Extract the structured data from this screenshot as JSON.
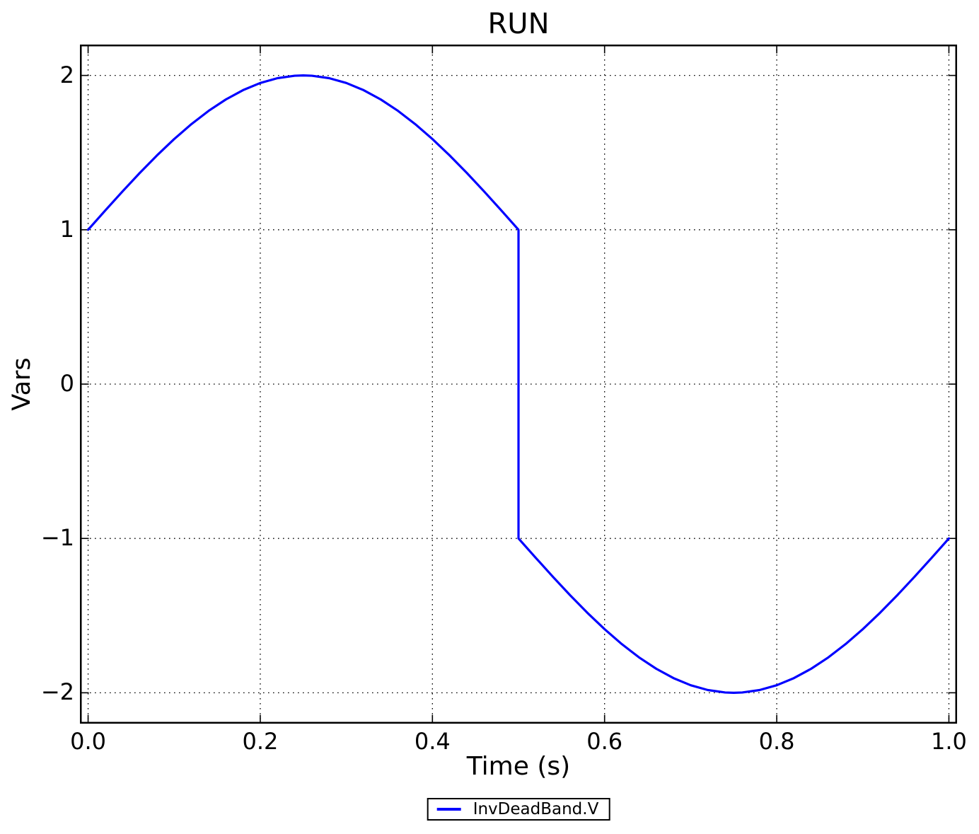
{
  "chart_data": {
    "type": "line",
    "title": "RUN",
    "xlabel": "Time (s)",
    "ylabel": "Vars",
    "xlim": [
      -0.0095,
      1.0095
    ],
    "ylim": [
      -2.2,
      2.2
    ],
    "x_ticks": [
      0.0,
      0.2,
      0.4,
      0.6,
      0.8,
      1.0
    ],
    "x_tick_labels": [
      "0.0",
      "0.2",
      "0.4",
      "0.6",
      "0.8",
      "1.0"
    ],
    "y_ticks": [
      -2,
      -1,
      0,
      1,
      2
    ],
    "y_tick_labels": [
      "−2",
      "−1",
      "0",
      "1",
      "2"
    ],
    "grid": true,
    "grid_style": "dotted",
    "axis_color": "#000000",
    "background_color": "#ffffff",
    "legend": {
      "position": "below-axes-center",
      "entries": [
        {
          "label": "InvDeadBand.V",
          "color": "#0000ff"
        }
      ]
    },
    "series": [
      {
        "name": "InvDeadBand.V",
        "color": "#0000ff",
        "line_width": 3.2,
        "description": "y = sin(2*pi*t) + 1 for t in [0,0.5]; y = sin(2*pi*t) - 1 for t in (0.5,1]; vertical jump from 1 to -1 at t = 0.5",
        "points": [
          [
            0.0,
            1.0
          ],
          [
            0.02,
            1.1253
          ],
          [
            0.04,
            1.2487
          ],
          [
            0.06,
            1.3681
          ],
          [
            0.08,
            1.4818
          ],
          [
            0.1,
            1.5878
          ],
          [
            0.12,
            1.6845
          ],
          [
            0.14,
            1.7705
          ],
          [
            0.16,
            1.8443
          ],
          [
            0.18,
            1.9048
          ],
          [
            0.2,
            1.9511
          ],
          [
            0.22,
            1.9823
          ],
          [
            0.24,
            1.998
          ],
          [
            0.25,
            2.0
          ],
          [
            0.26,
            1.998
          ],
          [
            0.28,
            1.9823
          ],
          [
            0.3,
            1.9511
          ],
          [
            0.32,
            1.9048
          ],
          [
            0.34,
            1.8443
          ],
          [
            0.36,
            1.7705
          ],
          [
            0.38,
            1.6845
          ],
          [
            0.4,
            1.5878
          ],
          [
            0.42,
            1.4818
          ],
          [
            0.44,
            1.3681
          ],
          [
            0.46,
            1.2487
          ],
          [
            0.48,
            1.1253
          ],
          [
            0.5,
            1.0
          ],
          [
            0.5,
            -1.0
          ],
          [
            0.52,
            -1.1253
          ],
          [
            0.54,
            -1.2487
          ],
          [
            0.56,
            -1.3681
          ],
          [
            0.58,
            -1.4818
          ],
          [
            0.6,
            -1.5878
          ],
          [
            0.62,
            -1.6845
          ],
          [
            0.64,
            -1.7705
          ],
          [
            0.66,
            -1.8443
          ],
          [
            0.68,
            -1.9048
          ],
          [
            0.7,
            -1.9511
          ],
          [
            0.72,
            -1.9823
          ],
          [
            0.74,
            -1.998
          ],
          [
            0.75,
            -2.0
          ],
          [
            0.76,
            -1.998
          ],
          [
            0.78,
            -1.9823
          ],
          [
            0.8,
            -1.9511
          ],
          [
            0.82,
            -1.9048
          ],
          [
            0.84,
            -1.8443
          ],
          [
            0.86,
            -1.7705
          ],
          [
            0.88,
            -1.6845
          ],
          [
            0.9,
            -1.5878
          ],
          [
            0.92,
            -1.4818
          ],
          [
            0.94,
            -1.3681
          ],
          [
            0.96,
            -1.2487
          ],
          [
            0.98,
            -1.1253
          ],
          [
            1.0,
            -1.0
          ]
        ]
      }
    ]
  }
}
